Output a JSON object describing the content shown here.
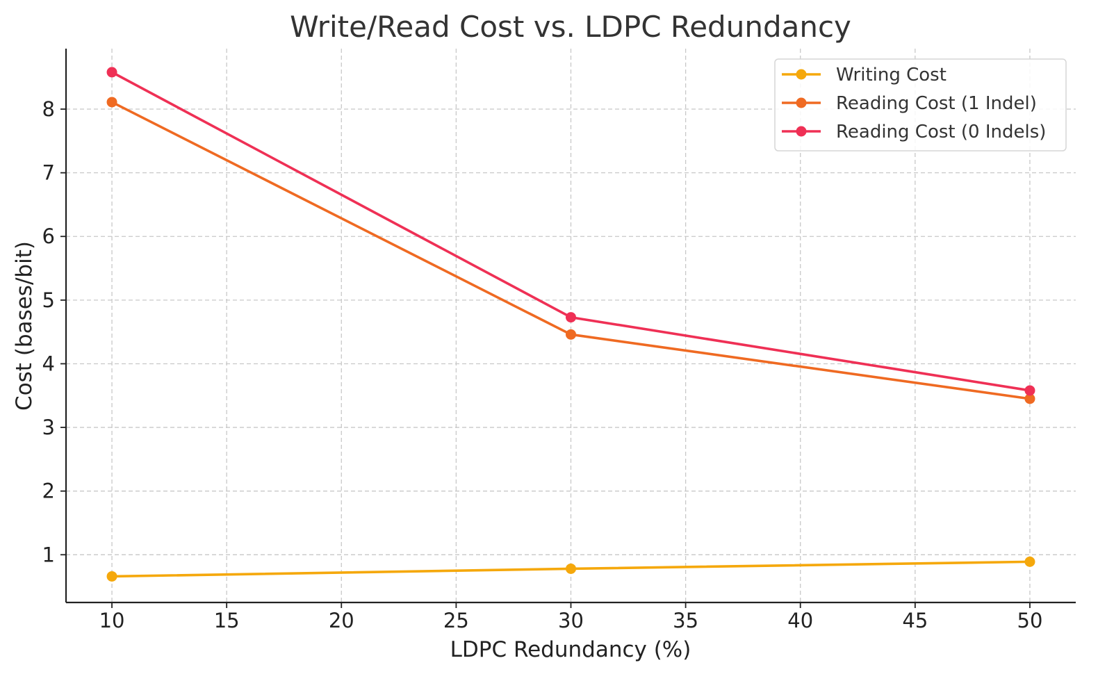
{
  "chart_data": {
    "type": "line",
    "title": "Write/Read Cost vs. LDPC Redundancy",
    "xlabel": "LDPC Redundancy (%)",
    "ylabel": "Cost (bases/bit)",
    "x": [
      10,
      30,
      50
    ],
    "xlim": [
      8,
      52
    ],
    "ylim": [
      0.25,
      8.95
    ],
    "xticks": [
      10,
      15,
      20,
      25,
      30,
      35,
      40,
      45,
      50
    ],
    "yticks": [
      1,
      2,
      3,
      4,
      5,
      6,
      7,
      8
    ],
    "grid": true,
    "legend_position": "top-right",
    "series": [
      {
        "name": "Writing Cost",
        "color": "#f5a80c",
        "values": [
          0.66,
          0.78,
          0.89
        ]
      },
      {
        "name": "Reading Cost (1 Indel)",
        "color": "#ef6a22",
        "values": [
          8.11,
          4.46,
          3.45
        ]
      },
      {
        "name": "Reading Cost (0 Indels)",
        "color": "#ef3055",
        "values": [
          8.58,
          4.73,
          3.58
        ]
      }
    ]
  }
}
